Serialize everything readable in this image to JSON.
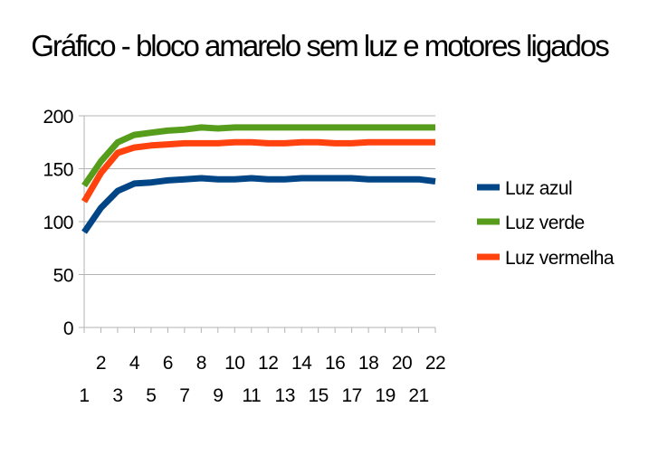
{
  "chart_data": {
    "type": "line",
    "title": "Gráfico - bloco amarelo sem luz e motores ligados",
    "xlabel": "",
    "ylabel": "",
    "ylim": [
      0,
      200
    ],
    "y_ticks": [
      "0",
      "50",
      "100",
      "150",
      "200"
    ],
    "categories": [
      "1",
      "2",
      "3",
      "4",
      "5",
      "6",
      "7",
      "8",
      "9",
      "10",
      "11",
      "12",
      "13",
      "14",
      "15",
      "16",
      "17",
      "18",
      "19",
      "20",
      "21",
      "22"
    ],
    "grid": true,
    "legend_position": "right",
    "series": [
      {
        "name": "Luz azul",
        "color": "#004586",
        "values": [
          90,
          113,
          129,
          136,
          137,
          139,
          140,
          141,
          140,
          140,
          141,
          140,
          140,
          141,
          141,
          141,
          141,
          140,
          140,
          140,
          140,
          138
        ]
      },
      {
        "name": "Luz verde",
        "color": "#579d1c",
        "values": [
          134,
          157,
          175,
          182,
          184,
          186,
          187,
          189,
          188,
          189,
          189,
          189,
          189,
          189,
          189,
          189,
          189,
          189,
          189,
          189,
          189,
          189
        ]
      },
      {
        "name": "Luz vermelha",
        "color": "#ff420e",
        "values": [
          119,
          146,
          165,
          170,
          172,
          173,
          174,
          174,
          174,
          175,
          175,
          174,
          174,
          175,
          175,
          174,
          174,
          175,
          175,
          175,
          175,
          175
        ]
      }
    ]
  }
}
